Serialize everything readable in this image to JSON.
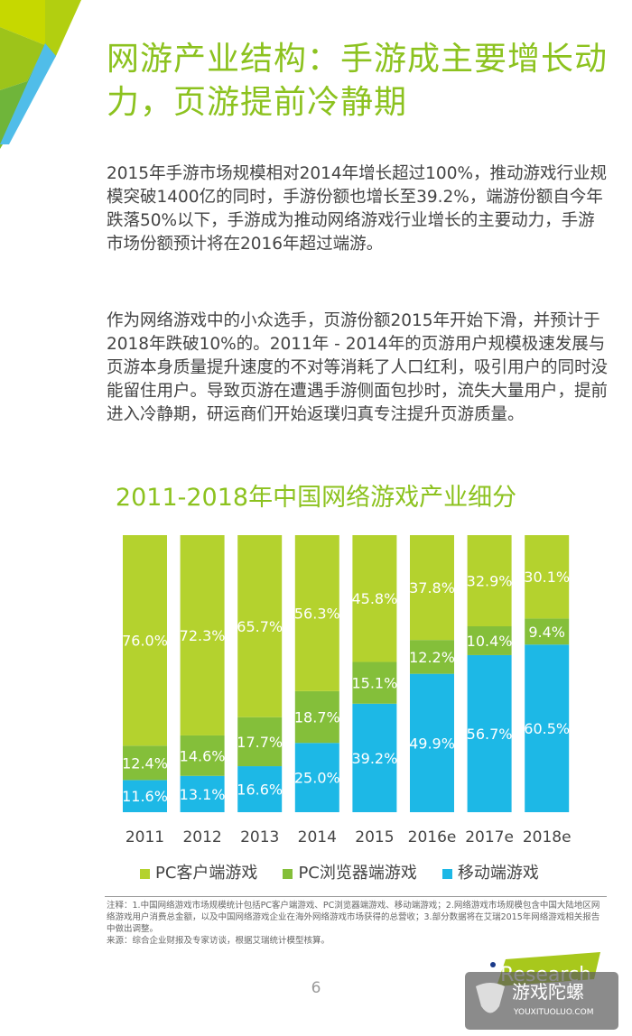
{
  "title": "网游产业结构：手游成主要增长动力，页游提前冷静期",
  "paragraphs": [
    "2015年手游市场规模相对2014年增长超过100%，推动游戏行业规模突破1400亿的同时，手游份额也增长至39.2%，端游份额自今年跌落50%以下，手游成为推动网络游戏行业增长的主要动力，手游市场份额预计将在2016年超过端游。",
    "作为网络游戏中的小众选手，页游份额2015年开始下滑，并预计于2018年跌破10%的。2011年 - 2014年的页游用户规模极速发展与页游本身质量提升速度的不对等消耗了人口红利，吸引用户的同时没能留住用户。导致页游在遭遇手游侧面包抄时，流失大量用户，提前进入冷静期，研运商们开始返璞归真专注提升页游质量。"
  ],
  "chart_data": {
    "type": "bar",
    "stacked": true,
    "title": "2011-2018年中国网络游戏产业细分",
    "categories": [
      "2011",
      "2012",
      "2013",
      "2014",
      "2015",
      "2016e",
      "2017e",
      "2018e"
    ],
    "series": [
      {
        "name": "移动端游戏",
        "color": "#1db8e6",
        "values": [
          11.6,
          13.1,
          16.6,
          25.0,
          39.2,
          49.9,
          56.7,
          60.5
        ]
      },
      {
        "name": "PC浏览器端游戏",
        "color": "#84bf3a",
        "values": [
          12.4,
          14.6,
          17.7,
          18.7,
          15.1,
          12.2,
          10.4,
          9.4
        ]
      },
      {
        "name": "PC客户端游戏",
        "color": "#b4d22e",
        "values": [
          76.0,
          72.3,
          65.7,
          56.3,
          45.8,
          37.8,
          32.9,
          30.1
        ]
      }
    ],
    "legend_order": [
      "PC客户端游戏",
      "PC浏览器端游戏",
      "移动端游戏"
    ],
    "value_suffix": "%",
    "ylim": [
      0,
      100
    ],
    "legend_position": "bottom"
  },
  "notes": "注释：1.中国网络游戏市场规模统计包括PC客户端游戏、PC浏览器端游戏、移动端游戏；2.网络游戏市场规模包含中国大陆地区网络游戏用户消费总金额，以及中国网络游戏企业在海外网络游戏市场获得的总营收；3.部分数据将在艾瑞2015年网络游戏相关报告中做出调整。",
  "source": "来源：综合企业财报及专家访谈，根据艾瑞统计模型核算。",
  "page_number": "6",
  "logo": "iResearch",
  "watermark": {
    "name": "游戏陀螺",
    "url": "YOUXITUOLUO.COM"
  },
  "colors": {
    "accent": "#8cc21f",
    "blue": "#4fb8e8"
  }
}
